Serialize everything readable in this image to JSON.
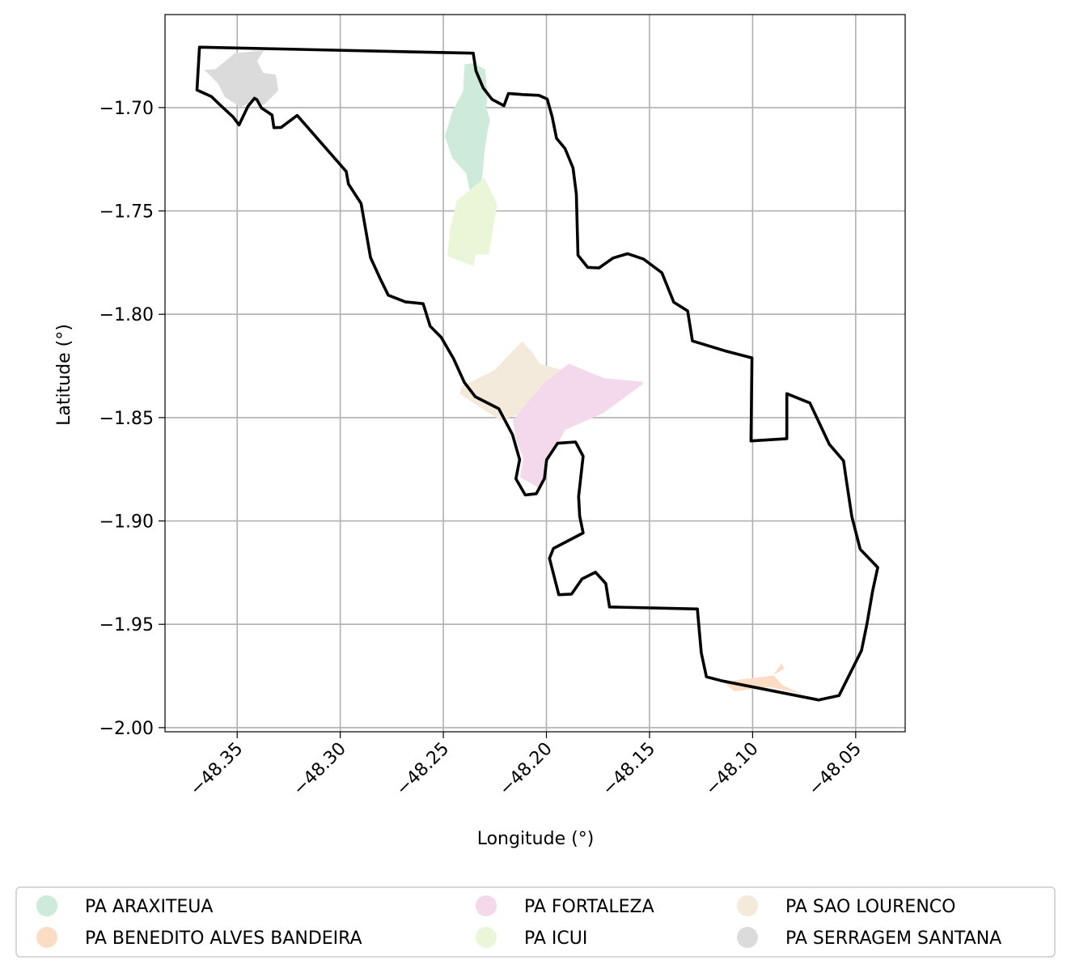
{
  "chart_data": {
    "type": "map",
    "xlabel": "Longitude (°)",
    "ylabel": "Latitude (°)",
    "xlim": [
      -48.385,
      -48.026
    ],
    "ylim": [
      -2.002,
      -1.655
    ],
    "grid": true,
    "xticks": [
      -48.35,
      -48.3,
      -48.25,
      -48.2,
      -48.15,
      -48.1,
      -48.05
    ],
    "xtick_labels": [
      "−48.35",
      "−48.30",
      "−48.25",
      "−48.20",
      "−48.15",
      "−48.10",
      "−48.05"
    ],
    "yticks": [
      -1.7,
      -1.75,
      -1.8,
      -1.85,
      -1.9,
      -1.95,
      -2.0
    ],
    "ytick_labels": [
      "−1.70",
      "−1.75",
      "−1.80",
      "−1.85",
      "−1.90",
      "−1.95",
      "−2.00"
    ],
    "legend_position": "bottom-center",
    "legend": [
      {
        "name": "PA ARAXITEUA",
        "color": "#cdeadb"
      },
      {
        "name": "PA BENEDITO ALVES BANDEIRA",
        "color": "#fddcc5"
      },
      {
        "name": "PA FORTALEZA",
        "color": "#f4d9ec"
      },
      {
        "name": "PA ICUI",
        "color": "#ebf6d8"
      },
      {
        "name": "PA SAO LOURENCO",
        "color": "#f4eadb"
      },
      {
        "name": "PA SERRAGEM SANTANA",
        "color": "#dbdbdb"
      }
    ],
    "boundary_color": "#000000",
    "boundary": [
      [
        -48.3683,
        -1.6708
      ],
      [
        -48.2355,
        -1.6737
      ],
      [
        -48.2342,
        -1.6822
      ],
      [
        -48.2307,
        -1.6905
      ],
      [
        -48.2264,
        -1.696
      ],
      [
        -48.2206,
        -1.6991
      ],
      [
        -48.2184,
        -1.6932
      ],
      [
        -48.2116,
        -1.6937
      ],
      [
        -48.2036,
        -1.6941
      ],
      [
        -48.1996,
        -1.6959
      ],
      [
        -48.1972,
        -1.7046
      ],
      [
        -48.1951,
        -1.7149
      ],
      [
        -48.191,
        -1.7198
      ],
      [
        -48.1871,
        -1.7292
      ],
      [
        -48.1855,
        -1.7419
      ],
      [
        -48.1847,
        -1.7714
      ],
      [
        -48.18,
        -1.7773
      ],
      [
        -48.1745,
        -1.7776
      ],
      [
        -48.1677,
        -1.7728
      ],
      [
        -48.1606,
        -1.7707
      ],
      [
        -48.1529,
        -1.7733
      ],
      [
        -48.144,
        -1.7799
      ],
      [
        -48.1382,
        -1.7942
      ],
      [
        -48.1315,
        -1.7984
      ],
      [
        -48.1292,
        -1.8129
      ],
      [
        -48.1137,
        -1.8176
      ],
      [
        -48.1003,
        -1.8211
      ],
      [
        -48.1008,
        -1.8613
      ],
      [
        -48.0834,
        -1.8602
      ],
      [
        -48.0834,
        -1.8384
      ],
      [
        -48.0722,
        -1.8429
      ],
      [
        -48.0628,
        -1.8629
      ],
      [
        -48.0559,
        -1.8709
      ],
      [
        -48.0545,
        -1.8806
      ],
      [
        -48.0519,
        -1.8978
      ],
      [
        -48.0478,
        -1.9137
      ],
      [
        -48.0393,
        -1.9225
      ],
      [
        -48.0418,
        -1.934
      ],
      [
        -48.0445,
        -1.9497
      ],
      [
        -48.0472,
        -1.9627
      ],
      [
        -48.0581,
        -1.9845
      ],
      [
        -48.068,
        -1.9866
      ],
      [
        -48.1147,
        -1.9774
      ],
      [
        -48.1224,
        -1.9754
      ],
      [
        -48.1249,
        -1.9637
      ],
      [
        -48.1268,
        -1.9426
      ],
      [
        -48.1694,
        -1.9416
      ],
      [
        -48.1712,
        -1.9303
      ],
      [
        -48.1762,
        -1.9248
      ],
      [
        -48.1827,
        -1.928
      ],
      [
        -48.1878,
        -1.9354
      ],
      [
        -48.194,
        -1.9357
      ],
      [
        -48.1985,
        -1.9181
      ],
      [
        -48.1966,
        -1.9133
      ],
      [
        -48.1822,
        -1.9058
      ],
      [
        -48.1839,
        -1.8976
      ],
      [
        -48.1844,
        -1.8882
      ],
      [
        -48.1822,
        -1.8687
      ],
      [
        -48.1859,
        -1.8618
      ],
      [
        -48.1946,
        -1.8624
      ],
      [
        -48.1999,
        -1.8704
      ],
      [
        -48.201,
        -1.8795
      ],
      [
        -48.2049,
        -1.8868
      ],
      [
        -48.2103,
        -1.8874
      ],
      [
        -48.2148,
        -1.8796
      ],
      [
        -48.213,
        -1.8703
      ],
      [
        -48.2165,
        -1.8582
      ],
      [
        -48.2231,
        -1.8457
      ],
      [
        -48.2345,
        -1.8399
      ],
      [
        -48.2398,
        -1.833
      ],
      [
        -48.2451,
        -1.8214
      ],
      [
        -48.251,
        -1.8112
      ],
      [
        -48.2564,
        -1.8058
      ],
      [
        -48.2598,
        -1.7949
      ],
      [
        -48.2684,
        -1.794
      ],
      [
        -48.2767,
        -1.7908
      ],
      [
        -48.2809,
        -1.7822
      ],
      [
        -48.2853,
        -1.7726
      ],
      [
        -48.2899,
        -1.7464
      ],
      [
        -48.296,
        -1.737
      ],
      [
        -48.2971,
        -1.7309
      ],
      [
        -48.3209,
        -1.7038
      ],
      [
        -48.3287,
        -1.7096
      ],
      [
        -48.3322,
        -1.7097
      ],
      [
        -48.3331,
        -1.7036
      ],
      [
        -48.3382,
        -1.7002
      ],
      [
        -48.3405,
        -1.6961
      ],
      [
        -48.3416,
        -1.6955
      ],
      [
        -48.3448,
        -1.6994
      ],
      [
        -48.3491,
        -1.7084
      ],
      [
        -48.352,
        -1.7045
      ],
      [
        -48.3577,
        -1.6993
      ],
      [
        -48.3626,
        -1.6946
      ],
      [
        -48.3695,
        -1.6915
      ]
    ],
    "areas": [
      {
        "name": "PA ARAXITEUA",
        "color": "#cdeadb",
        "points": [
          [
            -48.2355,
            -1.6785
          ],
          [
            -48.2297,
            -1.6815
          ],
          [
            -48.2291,
            -1.6885
          ],
          [
            -48.2285,
            -1.6937
          ],
          [
            -48.2292,
            -1.7
          ],
          [
            -48.2274,
            -1.7058
          ],
          [
            -48.2287,
            -1.7123
          ],
          [
            -48.2301,
            -1.7218
          ],
          [
            -48.2307,
            -1.7296
          ],
          [
            -48.2317,
            -1.7365
          ],
          [
            -48.2372,
            -1.74
          ],
          [
            -48.2389,
            -1.7318
          ],
          [
            -48.2456,
            -1.7244
          ],
          [
            -48.2493,
            -1.7138
          ],
          [
            -48.2454,
            -1.7014
          ],
          [
            -48.2404,
            -1.6921
          ],
          [
            -48.2397,
            -1.6791
          ]
        ]
      },
      {
        "name": "PA ICUI",
        "color": "#ebf6d8",
        "points": [
          [
            -48.2301,
            -1.7339
          ],
          [
            -48.2435,
            -1.7452
          ],
          [
            -48.2468,
            -1.7591
          ],
          [
            -48.248,
            -1.7719
          ],
          [
            -48.2354,
            -1.7767
          ],
          [
            -48.2343,
            -1.771
          ],
          [
            -48.228,
            -1.7711
          ],
          [
            -48.2239,
            -1.7468
          ]
        ]
      },
      {
        "name": "PA SAO LOURENCO",
        "color": "#f4eadb",
        "points": [
          [
            -48.2117,
            -1.8129
          ],
          [
            -48.225,
            -1.8269
          ],
          [
            -48.2413,
            -1.8351
          ],
          [
            -48.2421,
            -1.8385
          ],
          [
            -48.2224,
            -1.8514
          ],
          [
            -48.199,
            -1.8435
          ],
          [
            -48.1833,
            -1.8257
          ],
          [
            -48.1898,
            -1.8276
          ],
          [
            -48.2033,
            -1.824
          ],
          [
            -48.2066,
            -1.8184
          ],
          [
            -48.2076,
            -1.8178
          ]
        ]
      },
      {
        "name": "PA FORTALEZA",
        "color": "#f4d9ec",
        "points": [
          [
            -48.1891,
            -1.8239
          ],
          [
            -48.1721,
            -1.8309
          ],
          [
            -48.153,
            -1.8327
          ],
          [
            -48.1533,
            -1.8338
          ],
          [
            -48.1722,
            -1.8477
          ],
          [
            -48.191,
            -1.856
          ],
          [
            -48.2011,
            -1.8743
          ],
          [
            -48.2026,
            -1.8847
          ],
          [
            -48.2128,
            -1.8788
          ],
          [
            -48.2112,
            -1.8697
          ],
          [
            -48.2147,
            -1.861
          ],
          [
            -48.2163,
            -1.8512
          ],
          [
            -48.2009,
            -1.833
          ]
        ]
      },
      {
        "name": "PA BENEDITO ALVES BANDEIRA",
        "color": "#fddcc5",
        "points": [
          [
            -48.0858,
            -1.9688
          ],
          [
            -48.0847,
            -1.9716
          ],
          [
            -48.0904,
            -1.9748
          ],
          [
            -48.1141,
            -1.9778
          ],
          [
            -48.1088,
            -1.9824
          ],
          [
            -48.0917,
            -1.9804
          ],
          [
            -48.0758,
            -1.9837
          ],
          [
            -48.0854,
            -1.9795
          ],
          [
            -48.09,
            -1.9746
          ]
        ]
      },
      {
        "name": "PA SERRAGEM SANTANA",
        "color": "#dbdbdb",
        "points": [
          [
            -48.359,
            -1.6814
          ],
          [
            -48.3608,
            -1.6816
          ],
          [
            -48.351,
            -1.6736
          ],
          [
            -48.337,
            -1.6724
          ],
          [
            -48.3403,
            -1.6775
          ],
          [
            -48.3373,
            -1.6832
          ],
          [
            -48.3313,
            -1.6841
          ],
          [
            -48.33,
            -1.6917
          ],
          [
            -48.337,
            -1.6987
          ],
          [
            -48.3412,
            -1.6968
          ],
          [
            -48.3485,
            -1.6997
          ],
          [
            -48.356,
            -1.6949
          ],
          [
            -48.3592,
            -1.6886
          ],
          [
            -48.3627,
            -1.6848
          ],
          [
            -48.366,
            -1.6817
          ]
        ]
      }
    ]
  }
}
